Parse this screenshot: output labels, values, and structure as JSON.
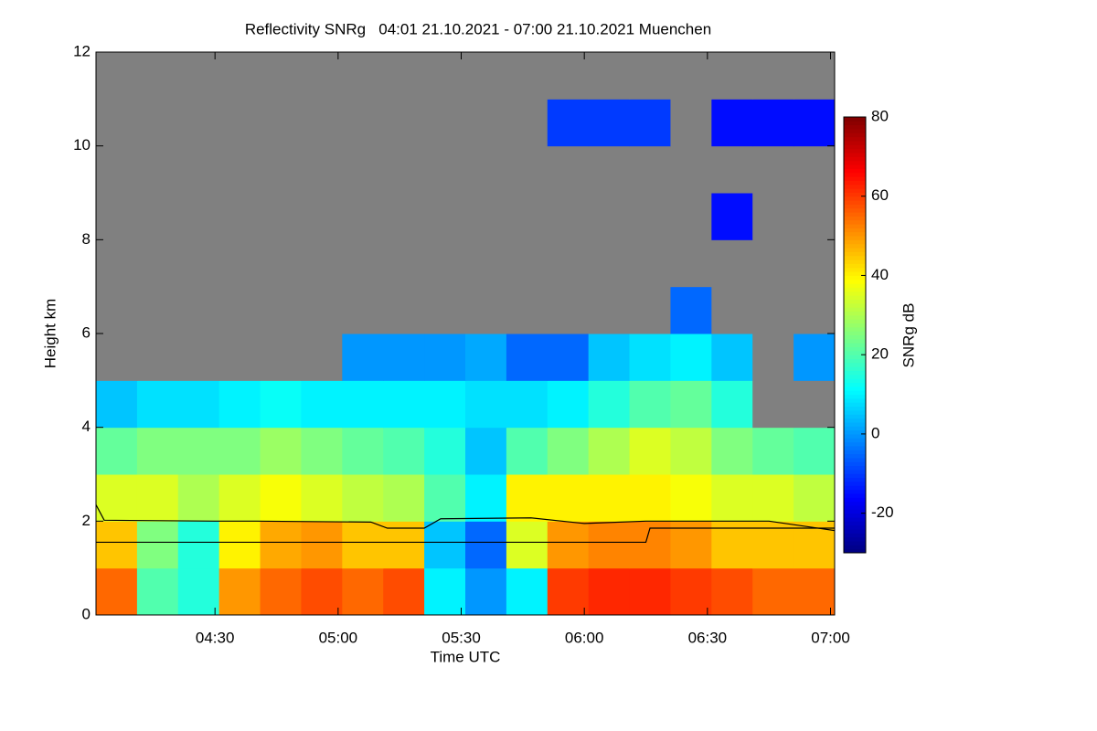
{
  "chart_data": {
    "type": "heatmap",
    "title": "Reflectivity SNRg   04:01 21.10.2021 - 07:00 21.10.2021 Muenchen",
    "xlabel": "Time UTC",
    "ylabel": "Height km",
    "colorbar_label": "SNRg dB",
    "xlim": [
      "04:01",
      "07:01"
    ],
    "xticks": [
      "04:30",
      "05:00",
      "05:30",
      "06:00",
      "06:30",
      "07:00"
    ],
    "ylim": [
      0,
      12
    ],
    "yticks": [
      0,
      2,
      4,
      6,
      8,
      10,
      12
    ],
    "zlim": [
      -30,
      80
    ],
    "zticks": [
      -20,
      0,
      20,
      40,
      60,
      80
    ],
    "null_color": "#808080",
    "x_bins": [
      "04:01",
      "04:11",
      "04:21",
      "04:31",
      "04:41",
      "04:51",
      "05:01",
      "05:11",
      "05:21",
      "05:31",
      "05:41",
      "05:51",
      "06:01",
      "06:11",
      "06:21",
      "06:31",
      "06:41",
      "06:51",
      "07:01"
    ],
    "y_bins": [
      0,
      1,
      2,
      3,
      4,
      5,
      6,
      7,
      8,
      9,
      10,
      11,
      12
    ],
    "z": [
      [
        55,
        20,
        15,
        50,
        55,
        58,
        55,
        58,
        10,
        0,
        10,
        60,
        62,
        62,
        60,
        58,
        55,
        55
      ],
      [
        45,
        25,
        15,
        40,
        48,
        50,
        45,
        45,
        5,
        -5,
        35,
        50,
        52,
        52,
        50,
        45,
        45,
        45
      ],
      [
        35,
        35,
        30,
        35,
        38,
        35,
        32,
        30,
        20,
        10,
        40,
        40,
        40,
        40,
        38,
        35,
        35,
        32
      ],
      [
        22,
        25,
        25,
        25,
        28,
        25,
        22,
        20,
        15,
        5,
        20,
        25,
        30,
        35,
        32,
        25,
        22,
        20
      ],
      [
        5,
        8,
        8,
        10,
        12,
        10,
        10,
        10,
        10,
        8,
        8,
        10,
        15,
        20,
        22,
        15,
        null,
        null
      ],
      [
        null,
        null,
        null,
        null,
        null,
        null,
        0,
        0,
        0,
        2,
        -5,
        -5,
        5,
        8,
        10,
        5,
        null,
        0
      ],
      [
        null,
        null,
        null,
        null,
        null,
        null,
        null,
        null,
        null,
        null,
        null,
        null,
        null,
        null,
        -5,
        null,
        null,
        null
      ],
      [
        null,
        null,
        null,
        null,
        null,
        null,
        null,
        null,
        null,
        null,
        null,
        null,
        null,
        null,
        null,
        null,
        null,
        null
      ],
      [
        null,
        null,
        null,
        null,
        null,
        null,
        null,
        null,
        null,
        null,
        null,
        null,
        null,
        null,
        null,
        -15,
        null,
        null
      ],
      [
        null,
        null,
        null,
        null,
        null,
        null,
        null,
        null,
        null,
        null,
        null,
        null,
        null,
        null,
        null,
        null,
        null,
        null
      ],
      [
        null,
        null,
        null,
        null,
        null,
        null,
        null,
        null,
        null,
        null,
        null,
        -10,
        -10,
        -10,
        null,
        -15,
        -15,
        -15
      ],
      [
        null,
        null,
        null,
        null,
        null,
        null,
        null,
        null,
        null,
        null,
        null,
        null,
        null,
        null,
        null,
        null,
        null,
        null
      ]
    ],
    "series": [
      {
        "color": "#000000",
        "x": [
          "04:01",
          "04:03",
          "04:30",
          "04:40",
          "05:08",
          "05:12",
          "05:21",
          "05:25",
          "05:47",
          "06:00",
          "06:15",
          "06:45",
          "07:01"
        ],
        "values": [
          2.35,
          2.02,
          2.0,
          2.0,
          1.98,
          1.85,
          1.85,
          2.05,
          2.07,
          1.95,
          2.0,
          2.0,
          1.8
        ]
      },
      {
        "color": "#000000",
        "x": [
          "04:01",
          "06:15",
          "06:16",
          "07:01"
        ],
        "values": [
          1.55,
          1.55,
          1.85,
          1.85
        ]
      }
    ]
  }
}
